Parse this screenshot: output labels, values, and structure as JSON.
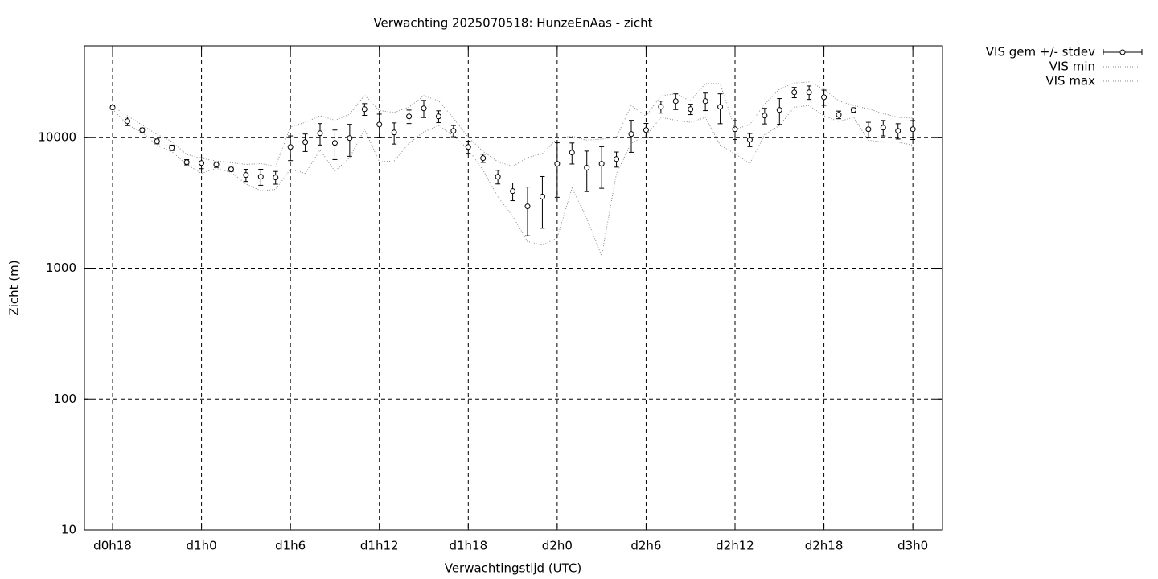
{
  "chart_data": {
    "type": "errorbar-line",
    "title": "Verwachting 2025070518: HunzeEnAas - zicht",
    "xlabel": "Verwachtingstijd (UTC)",
    "ylabel": "Zicht (m)",
    "log_y": true,
    "grid": true,
    "legend": "outside-top-right",
    "x": [
      18,
      19,
      20,
      21,
      22,
      23,
      24,
      25,
      26,
      27,
      28,
      29,
      30,
      31,
      32,
      33,
      34,
      35,
      36,
      37,
      38,
      39,
      40,
      41,
      42,
      43,
      44,
      45,
      46,
      47,
      48,
      49,
      50,
      51,
      52,
      53,
      54,
      55,
      56,
      57,
      58,
      59,
      60,
      61,
      62,
      63,
      64,
      65,
      66,
      67,
      68,
      69,
      70,
      71,
      72
    ],
    "xlim": [
      16.1,
      74
    ],
    "xticks": [
      {
        "value": 18,
        "label": "d0h18"
      },
      {
        "value": 24,
        "label": "d1h0"
      },
      {
        "value": 30,
        "label": "d1h6"
      },
      {
        "value": 36,
        "label": "d1h12"
      },
      {
        "value": 42,
        "label": "d1h18"
      },
      {
        "value": 48,
        "label": "d2h0"
      },
      {
        "value": 54,
        "label": "d2h6"
      },
      {
        "value": 60,
        "label": "d2h12"
      },
      {
        "value": 66,
        "label": "d2h18"
      },
      {
        "value": 72,
        "label": "d3h0"
      }
    ],
    "ylim": [
      10,
      50000
    ],
    "yticks": [
      10,
      100,
      1000,
      10000
    ],
    "series": [
      {
        "name": "VIS gem +/- stdev",
        "color": "#000000",
        "style": "errorbar",
        "values": [
          16900,
          13270,
          11360,
          9310,
          8320,
          6450,
          6360,
          6190,
          5690,
          5150,
          5000,
          4935,
          8440,
          9190,
          10730,
          9060,
          9860,
          16400,
          12530,
          10880,
          14440,
          16650,
          14440,
          11200,
          8440,
          6930,
          5000,
          3880,
          2970,
          3520,
          6280,
          7650,
          5850,
          6280,
          6820,
          10580,
          11360,
          17100,
          18890,
          16400,
          18890,
          17100,
          11520,
          9590,
          14650,
          16180,
          22070,
          22070,
          20260,
          14860,
          16180,
          11520,
          11850,
          11200,
          11520
        ],
        "errors": [
          500,
          1000,
          400,
          400,
          400,
          300,
          600,
          300,
          200,
          550,
          700,
          550,
          1800,
          1400,
          2000,
          2300,
          2700,
          1700,
          2500,
          2000,
          1700,
          2500,
          1500,
          1100,
          900,
          500,
          600,
          600,
          1200,
          1500,
          2800,
          1400,
          2000,
          2200,
          900,
          2900,
          1400,
          1800,
          2600,
          1500,
          2900,
          4400,
          1900,
          1100,
          2000,
          3600,
          2000,
          2600,
          2700,
          1000,
          600,
          1500,
          1600,
          1500,
          1900
        ]
      },
      {
        "name": "VIS min",
        "color": "#888888",
        "style": "dotted",
        "values": [
          16400,
          12500,
          10900,
          8700,
          7800,
          6200,
          5300,
          5800,
          5400,
          4400,
          3900,
          4000,
          5700,
          5300,
          8000,
          5500,
          7000,
          11500,
          6500,
          6600,
          9000,
          11000,
          12300,
          10300,
          8100,
          5600,
          3500,
          2500,
          1600,
          1500,
          1700,
          4100,
          2400,
          1240,
          5300,
          9000,
          10300,
          14200,
          13500,
          13000,
          14200,
          8700,
          7500,
          6300,
          10500,
          12300,
          17000,
          17500,
          14600,
          13200,
          14200,
          9500,
          9200,
          9200,
          8700
        ]
      },
      {
        "name": "VIS max",
        "color": "#888888",
        "style": "dotted",
        "values": [
          17200,
          14600,
          12400,
          10500,
          9300,
          7400,
          6900,
          6600,
          6400,
          6200,
          6300,
          6000,
          12000,
          13000,
          14600,
          13500,
          15000,
          21000,
          16000,
          15500,
          17000,
          20800,
          19000,
          14000,
          10000,
          7800,
          6500,
          6000,
          7000,
          7500,
          9800,
          10200,
          9500,
          9700,
          10000,
          17500,
          14500,
          20800,
          21500,
          19000,
          25700,
          25700,
          11500,
          12500,
          18000,
          23300,
          26000,
          26500,
          23300,
          19000,
          17500,
          16500,
          15200,
          14200,
          14000
        ]
      }
    ]
  }
}
